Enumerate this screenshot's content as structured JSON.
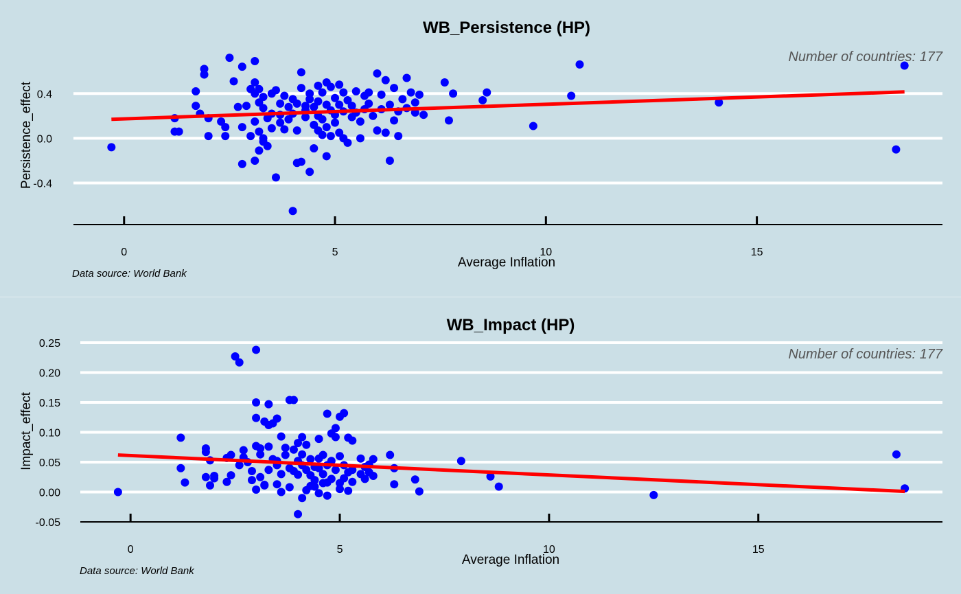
{
  "chart_data": [
    {
      "type": "scatter",
      "title": "WB_Persistence (HP)",
      "xlabel": "Average Inflation",
      "ylabel": "Persistence_effect",
      "annotation": "Number of countries: 177",
      "caption": "Data source: World Bank",
      "xlim": [
        -1.2,
        19.4
      ],
      "ylim": [
        -0.71,
        0.77
      ],
      "xticks": [
        0,
        5,
        10,
        15
      ],
      "yticks": [
        0.4,
        0.0,
        -0.4
      ],
      "ytick_labels": [
        "0.4",
        "0.0",
        "-0.4"
      ],
      "trend_line": {
        "x": [
          -0.3,
          18.5
        ],
        "y": [
          0.17,
          0.415
        ]
      },
      "grid": "horizontal",
      "colors": {
        "points": "#0000ff",
        "trend": "#ff0000",
        "grid": "#ffffff"
      },
      "points": [
        [
          -0.3,
          -0.08
        ],
        [
          1.2,
          0.18
        ],
        [
          1.2,
          0.06
        ],
        [
          1.3,
          0.06
        ],
        [
          1.7,
          0.42
        ],
        [
          1.7,
          0.29
        ],
        [
          1.8,
          0.22
        ],
        [
          1.9,
          0.62
        ],
        [
          1.9,
          0.57
        ],
        [
          2.0,
          0.18
        ],
        [
          2.0,
          0.02
        ],
        [
          2.3,
          0.15
        ],
        [
          2.4,
          0.02
        ],
        [
          2.4,
          0.1
        ],
        [
          2.5,
          0.72
        ],
        [
          2.6,
          0.51
        ],
        [
          2.7,
          0.28
        ],
        [
          2.8,
          0.1
        ],
        [
          2.8,
          -0.23
        ],
        [
          2.8,
          0.64
        ],
        [
          2.9,
          0.29
        ],
        [
          3.0,
          0.02
        ],
        [
          3.0,
          0.44
        ],
        [
          3.1,
          -0.2
        ],
        [
          3.1,
          0.69
        ],
        [
          3.1,
          0.5
        ],
        [
          3.1,
          0.4
        ],
        [
          3.1,
          0.15
        ],
        [
          3.2,
          -0.11
        ],
        [
          3.2,
          0.44
        ],
        [
          3.2,
          0.32
        ],
        [
          3.2,
          0.06
        ],
        [
          3.3,
          0.37
        ],
        [
          3.3,
          -0.03
        ],
        [
          3.3,
          0.0
        ],
        [
          3.3,
          0.27
        ],
        [
          3.4,
          -0.07
        ],
        [
          3.4,
          0.18
        ],
        [
          3.5,
          0.4
        ],
        [
          3.5,
          0.22
        ],
        [
          3.5,
          0.09
        ],
        [
          3.6,
          -0.35
        ],
        [
          3.6,
          0.43
        ],
        [
          3.7,
          0.31
        ],
        [
          3.7,
          0.21
        ],
        [
          3.7,
          0.14
        ],
        [
          3.8,
          0.38
        ],
        [
          3.8,
          0.08
        ],
        [
          3.9,
          0.28
        ],
        [
          3.9,
          0.17
        ],
        [
          4.0,
          -0.65
        ],
        [
          4.0,
          0.35
        ],
        [
          4.0,
          0.22
        ],
        [
          4.1,
          -0.22
        ],
        [
          4.1,
          0.07
        ],
        [
          4.1,
          0.31
        ],
        [
          4.2,
          0.59
        ],
        [
          4.2,
          -0.21
        ],
        [
          4.2,
          0.45
        ],
        [
          4.3,
          0.29
        ],
        [
          4.3,
          0.25
        ],
        [
          4.3,
          0.19
        ],
        [
          4.4,
          0.4
        ],
        [
          4.4,
          -0.3
        ],
        [
          4.4,
          0.35
        ],
        [
          4.5,
          -0.09
        ],
        [
          4.5,
          0.28
        ],
        [
          4.5,
          0.12
        ],
        [
          4.6,
          0.47
        ],
        [
          4.6,
          0.33
        ],
        [
          4.6,
          0.2
        ],
        [
          4.6,
          0.07
        ],
        [
          4.7,
          0.41
        ],
        [
          4.7,
          0.03
        ],
        [
          4.7,
          0.17
        ],
        [
          4.8,
          0.5
        ],
        [
          4.8,
          0.3
        ],
        [
          4.8,
          0.1
        ],
        [
          4.8,
          -0.16
        ],
        [
          4.9,
          0.46
        ],
        [
          4.9,
          0.25
        ],
        [
          4.9,
          0.02
        ],
        [
          5.0,
          0.36
        ],
        [
          5.0,
          0.21
        ],
        [
          5.0,
          0.14
        ],
        [
          5.1,
          0.48
        ],
        [
          5.1,
          0.3
        ],
        [
          5.1,
          0.05
        ],
        [
          5.2,
          0.41
        ],
        [
          5.2,
          0.24
        ],
        [
          5.2,
          0.0
        ],
        [
          5.3,
          0.34
        ],
        [
          5.3,
          -0.04
        ],
        [
          5.4,
          0.19
        ],
        [
          5.4,
          0.29
        ],
        [
          5.5,
          0.42
        ],
        [
          5.5,
          0.23
        ],
        [
          5.6,
          0.15
        ],
        [
          5.6,
          0.0
        ],
        [
          5.7,
          0.38
        ],
        [
          5.7,
          0.26
        ],
        [
          5.8,
          0.41
        ],
        [
          5.8,
          0.31
        ],
        [
          5.9,
          0.2
        ],
        [
          6.0,
          0.58
        ],
        [
          6.0,
          0.07
        ],
        [
          6.1,
          0.39
        ],
        [
          6.1,
          0.26
        ],
        [
          6.2,
          0.52
        ],
        [
          6.2,
          0.05
        ],
        [
          6.3,
          0.3
        ],
        [
          6.3,
          -0.2
        ],
        [
          6.4,
          0.45
        ],
        [
          6.4,
          0.16
        ],
        [
          6.5,
          0.24
        ],
        [
          6.5,
          0.02
        ],
        [
          6.6,
          0.35
        ],
        [
          6.7,
          0.54
        ],
        [
          6.7,
          0.27
        ],
        [
          6.8,
          0.41
        ],
        [
          6.9,
          0.32
        ],
        [
          6.9,
          0.23
        ],
        [
          7.0,
          0.39
        ],
        [
          7.1,
          0.21
        ],
        [
          7.6,
          0.5
        ],
        [
          7.7,
          0.16
        ],
        [
          7.8,
          0.4
        ],
        [
          8.5,
          0.34
        ],
        [
          8.6,
          0.41
        ],
        [
          9.7,
          0.11
        ],
        [
          10.6,
          0.38
        ],
        [
          10.8,
          0.66
        ],
        [
          14.1,
          0.32
        ],
        [
          18.3,
          -0.1
        ],
        [
          18.5,
          0.65
        ]
      ]
    },
    {
      "type": "scatter",
      "title": "WB_Impact (HP)",
      "xlabel": "Average Inflation",
      "ylabel": "Impact_effect",
      "annotation": "Number of countries: 177",
      "caption": "Data source: World Bank",
      "xlim": [
        -1.2,
        19.4
      ],
      "ylim": [
        -0.05,
        0.25
      ],
      "xticks": [
        0,
        5,
        10,
        15
      ],
      "yticks": [
        0.25,
        0.2,
        0.15,
        0.1,
        0.05,
        0.0,
        -0.05
      ],
      "ytick_labels": [
        "0.25",
        "0.20",
        "0.15",
        "0.10",
        "0.05",
        "0.00",
        "-0.05"
      ],
      "trend_line": {
        "x": [
          -0.3,
          18.5
        ],
        "y": [
          0.062,
          0.001
        ]
      },
      "grid": "horizontal",
      "colors": {
        "points": "#0000ff",
        "trend": "#ff0000",
        "grid": "#ffffff"
      },
      "points": [
        [
          -0.3,
          0.0
        ],
        [
          1.2,
          0.091
        ],
        [
          1.2,
          0.04
        ],
        [
          1.3,
          0.016
        ],
        [
          1.8,
          0.073
        ],
        [
          1.8,
          0.067
        ],
        [
          1.8,
          0.025
        ],
        [
          1.9,
          0.053
        ],
        [
          1.9,
          0.011
        ],
        [
          2.0,
          0.023
        ],
        [
          2.0,
          0.027
        ],
        [
          2.3,
          0.057
        ],
        [
          2.3,
          0.017
        ],
        [
          2.4,
          0.062
        ],
        [
          2.4,
          0.028
        ],
        [
          2.5,
          0.227
        ],
        [
          2.6,
          0.217
        ],
        [
          2.6,
          0.045
        ],
        [
          2.7,
          0.07
        ],
        [
          2.7,
          0.058
        ],
        [
          2.8,
          0.05
        ],
        [
          2.9,
          0.035
        ],
        [
          2.9,
          0.02
        ],
        [
          3.0,
          0.238
        ],
        [
          3.0,
          0.15
        ],
        [
          3.0,
          0.124
        ],
        [
          3.0,
          0.077
        ],
        [
          3.0,
          0.004
        ],
        [
          3.1,
          0.073
        ],
        [
          3.1,
          0.063
        ],
        [
          3.1,
          0.025
        ],
        [
          3.2,
          0.118
        ],
        [
          3.2,
          0.011
        ],
        [
          3.2,
          0.012
        ],
        [
          3.3,
          0.112
        ],
        [
          3.3,
          0.147
        ],
        [
          3.3,
          0.037
        ],
        [
          3.3,
          0.076
        ],
        [
          3.4,
          0.115
        ],
        [
          3.4,
          0.055
        ],
        [
          3.5,
          0.123
        ],
        [
          3.5,
          0.052
        ],
        [
          3.5,
          0.045
        ],
        [
          3.5,
          0.013
        ],
        [
          3.6,
          0.093
        ],
        [
          3.6,
          0.03
        ],
        [
          3.6,
          0.0
        ],
        [
          3.7,
          0.074
        ],
        [
          3.7,
          0.062
        ],
        [
          3.8,
          0.154
        ],
        [
          3.8,
          0.04
        ],
        [
          3.8,
          0.008
        ],
        [
          3.9,
          0.154
        ],
        [
          3.9,
          0.071
        ],
        [
          3.9,
          0.035
        ],
        [
          4.0,
          0.082
        ],
        [
          4.0,
          -0.037
        ],
        [
          4.0,
          0.052
        ],
        [
          4.0,
          0.029
        ],
        [
          4.1,
          0.092
        ],
        [
          4.1,
          0.045
        ],
        [
          4.1,
          0.063
        ],
        [
          4.1,
          -0.01
        ],
        [
          4.2,
          0.079
        ],
        [
          4.2,
          0.037
        ],
        [
          4.2,
          0.003
        ],
        [
          4.3,
          0.055
        ],
        [
          4.3,
          0.028
        ],
        [
          4.3,
          0.01
        ],
        [
          4.4,
          0.042
        ],
        [
          4.4,
          0.02
        ],
        [
          4.4,
          0.009
        ],
        [
          4.5,
          0.089
        ],
        [
          4.5,
          0.056
        ],
        [
          4.5,
          0.04
        ],
        [
          4.5,
          -0.002
        ],
        [
          4.6,
          0.062
        ],
        [
          4.6,
          0.03
        ],
        [
          4.6,
          0.015
        ],
        [
          4.7,
          0.131
        ],
        [
          4.7,
          0.045
        ],
        [
          4.7,
          0.016
        ],
        [
          4.7,
          -0.006
        ],
        [
          4.8,
          0.098
        ],
        [
          4.8,
          0.052
        ],
        [
          4.8,
          0.022
        ],
        [
          4.9,
          0.107
        ],
        [
          4.9,
          0.092
        ],
        [
          4.9,
          0.037
        ],
        [
          5.0,
          0.126
        ],
        [
          5.0,
          0.06
        ],
        [
          5.0,
          0.015
        ],
        [
          5.0,
          0.005
        ],
        [
          5.1,
          0.132
        ],
        [
          5.1,
          0.045
        ],
        [
          5.1,
          0.023
        ],
        [
          5.2,
          0.091
        ],
        [
          5.2,
          0.033
        ],
        [
          5.2,
          0.002
        ],
        [
          5.3,
          0.086
        ],
        [
          5.3,
          0.037
        ],
        [
          5.3,
          0.017
        ],
        [
          5.5,
          0.056
        ],
        [
          5.5,
          0.03
        ],
        [
          5.6,
          0.042
        ],
        [
          5.6,
          0.022
        ],
        [
          5.7,
          0.046
        ],
        [
          5.7,
          0.033
        ],
        [
          5.8,
          0.055
        ],
        [
          5.8,
          0.027
        ],
        [
          6.2,
          0.062
        ],
        [
          6.3,
          0.04
        ],
        [
          6.3,
          0.013
        ],
        [
          6.8,
          0.021
        ],
        [
          6.9,
          0.001
        ],
        [
          7.9,
          0.052
        ],
        [
          8.6,
          0.026
        ],
        [
          8.8,
          0.009
        ],
        [
          12.5,
          -0.005
        ],
        [
          18.3,
          0.063
        ],
        [
          18.5,
          0.006
        ]
      ]
    }
  ]
}
